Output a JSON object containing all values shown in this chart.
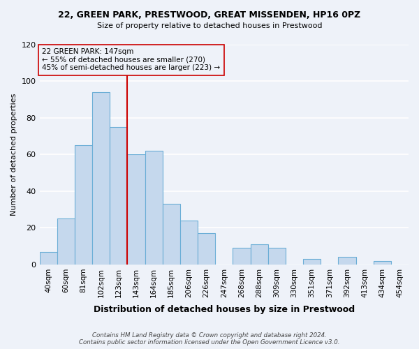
{
  "title": "22, GREEN PARK, PRESTWOOD, GREAT MISSENDEN, HP16 0PZ",
  "subtitle": "Size of property relative to detached houses in Prestwood",
  "xlabel": "Distribution of detached houses by size in Prestwood",
  "ylabel": "Number of detached properties",
  "bar_labels": [
    "40sqm",
    "60sqm",
    "81sqm",
    "102sqm",
    "123sqm",
    "143sqm",
    "164sqm",
    "185sqm",
    "206sqm",
    "226sqm",
    "247sqm",
    "268sqm",
    "288sqm",
    "309sqm",
    "330sqm",
    "351sqm",
    "371sqm",
    "392sqm",
    "413sqm",
    "434sqm",
    "454sqm"
  ],
  "bar_values": [
    7,
    25,
    65,
    94,
    75,
    60,
    62,
    33,
    24,
    17,
    0,
    9,
    11,
    9,
    0,
    3,
    0,
    4,
    0,
    2,
    0
  ],
  "bar_color": "#c5d8ed",
  "bar_edge_color": "#6baed6",
  "ylim": [
    0,
    120
  ],
  "yticks": [
    0,
    20,
    40,
    60,
    80,
    100,
    120
  ],
  "property_line_label": "22 GREEN PARK: 147sqm",
  "annotation_line1": "← 55% of detached houses are smaller (270)",
  "annotation_line2": "45% of semi-detached houses are larger (223) →",
  "vline_color": "#cc0000",
  "background_color": "#eef2f9",
  "grid_color": "#ffffff",
  "footer1": "Contains HM Land Registry data © Crown copyright and database right 2024.",
  "footer2": "Contains public sector information licensed under the Open Government Licence v3.0."
}
